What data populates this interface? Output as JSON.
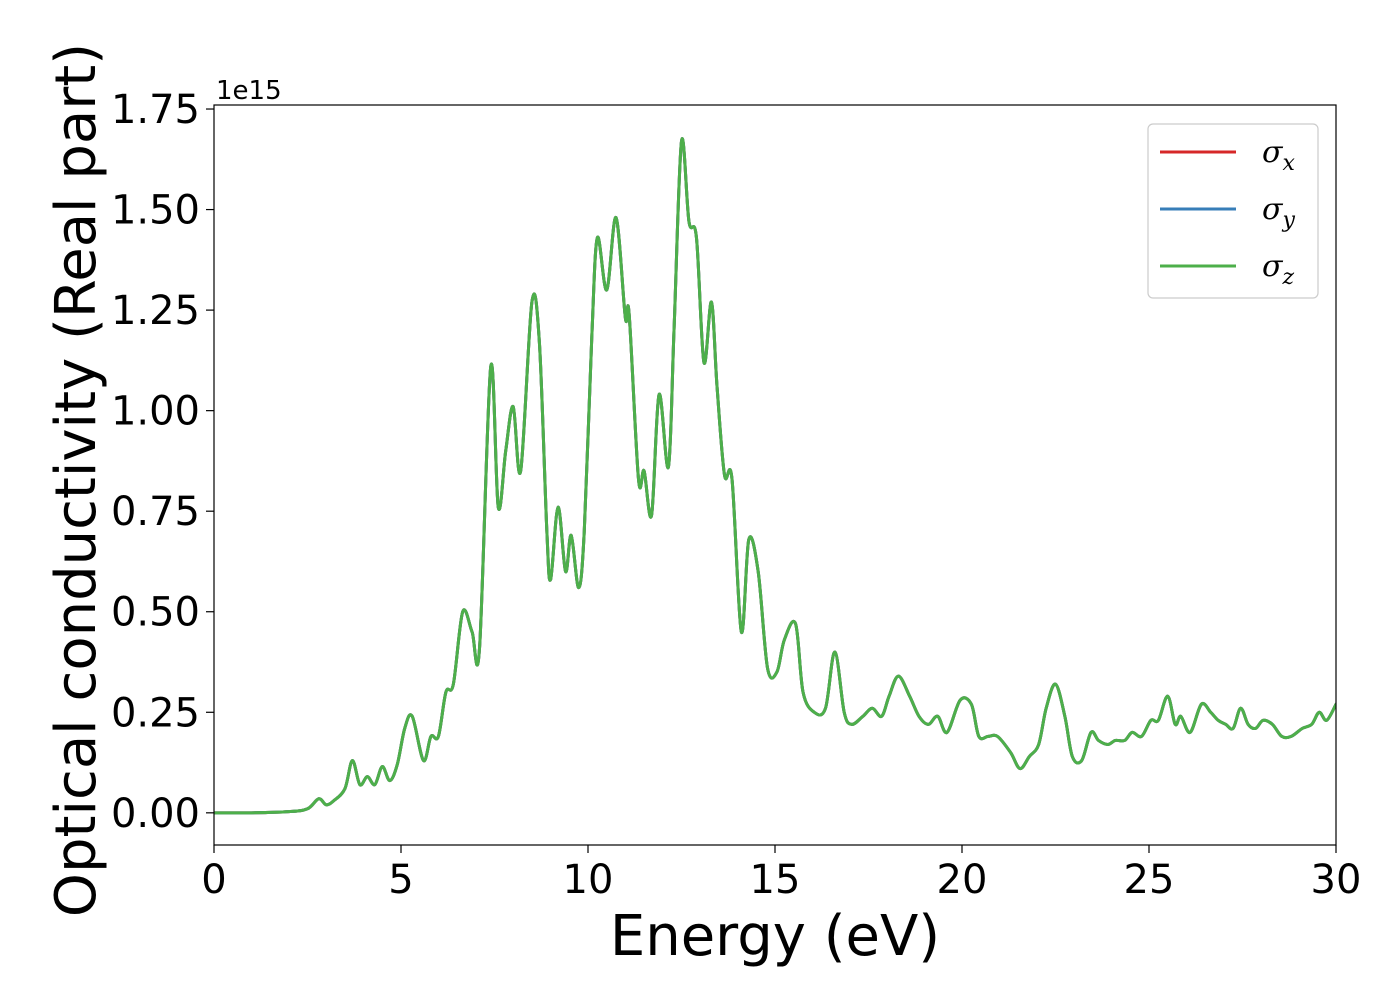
{
  "chart_data": {
    "type": "line",
    "xlabel": "Energy (eV)",
    "ylabel": "Optical conductivity (Real part)",
    "y_offset_label": "1e15",
    "xlim": [
      0,
      30
    ],
    "ylim": [
      -0.08,
      1.76
    ],
    "x_ticks": [
      0,
      5,
      10,
      15,
      20,
      25,
      30
    ],
    "x_tick_labels": [
      "0",
      "5",
      "10",
      "15",
      "20",
      "25",
      "30"
    ],
    "y_ticks": [
      0.0,
      0.25,
      0.5,
      0.75,
      1.0,
      1.25,
      1.5,
      1.75
    ],
    "y_tick_labels": [
      "0.00",
      "0.25",
      "0.50",
      "0.75",
      "1.00",
      "1.25",
      "1.50",
      "1.75"
    ],
    "grid": false,
    "legend_position": "top-right",
    "x": [
      0,
      1,
      2,
      2.5,
      2.8,
      3.0,
      3.2,
      3.5,
      3.7,
      3.9,
      4.1,
      4.3,
      4.5,
      4.7,
      4.9,
      5.1,
      5.3,
      5.6,
      5.8,
      6.0,
      6.2,
      6.4,
      6.65,
      6.9,
      7.1,
      7.4,
      7.6,
      7.8,
      8.0,
      8.2,
      8.5,
      8.7,
      8.9,
      9.0,
      9.2,
      9.4,
      9.55,
      9.75,
      9.9,
      10.1,
      10.25,
      10.5,
      10.75,
      11.0,
      11.1,
      11.35,
      11.5,
      11.7,
      11.9,
      12.15,
      12.3,
      12.5,
      12.7,
      12.9,
      13.1,
      13.3,
      13.45,
      13.65,
      13.85,
      14.1,
      14.3,
      14.55,
      14.8,
      15.05,
      15.25,
      15.55,
      15.75,
      16.05,
      16.35,
      16.6,
      16.85,
      17.05,
      17.35,
      17.6,
      17.85,
      18.05,
      18.3,
      18.6,
      18.85,
      19.1,
      19.35,
      19.6,
      19.95,
      20.25,
      20.45,
      20.7,
      20.95,
      21.3,
      21.55,
      21.8,
      22.05,
      22.25,
      22.5,
      22.75,
      22.95,
      23.2,
      23.45,
      23.65,
      23.9,
      24.1,
      24.35,
      24.55,
      24.8,
      25.05,
      25.25,
      25.5,
      25.7,
      25.85,
      26.1,
      26.4,
      26.65,
      26.85,
      27.05,
      27.25,
      27.45,
      27.65,
      27.85,
      28.05,
      28.3,
      28.55,
      28.8,
      29.1,
      29.35,
      29.55,
      29.75,
      30.0
    ],
    "series": [
      {
        "name": "σx",
        "color": "#d62728",
        "values": [
          0.0,
          0.0,
          0.003,
          0.01,
          0.035,
          0.02,
          0.03,
          0.06,
          0.13,
          0.07,
          0.09,
          0.07,
          0.115,
          0.08,
          0.12,
          0.21,
          0.24,
          0.13,
          0.19,
          0.19,
          0.3,
          0.32,
          0.5,
          0.45,
          0.41,
          1.11,
          0.76,
          0.9,
          1.01,
          0.85,
          1.27,
          1.17,
          0.7,
          0.58,
          0.76,
          0.6,
          0.69,
          0.56,
          0.7,
          1.18,
          1.43,
          1.3,
          1.48,
          1.23,
          1.24,
          0.83,
          0.85,
          0.74,
          1.04,
          0.86,
          1.2,
          1.67,
          1.47,
          1.43,
          1.12,
          1.27,
          1.06,
          0.84,
          0.83,
          0.45,
          0.68,
          0.6,
          0.36,
          0.35,
          0.43,
          0.47,
          0.3,
          0.25,
          0.26,
          0.4,
          0.25,
          0.22,
          0.24,
          0.26,
          0.24,
          0.29,
          0.34,
          0.29,
          0.24,
          0.22,
          0.24,
          0.2,
          0.28,
          0.27,
          0.19,
          0.19,
          0.19,
          0.15,
          0.11,
          0.14,
          0.17,
          0.26,
          0.32,
          0.24,
          0.14,
          0.13,
          0.2,
          0.18,
          0.17,
          0.18,
          0.18,
          0.2,
          0.19,
          0.23,
          0.23,
          0.29,
          0.22,
          0.24,
          0.2,
          0.27,
          0.25,
          0.23,
          0.22,
          0.21,
          0.26,
          0.22,
          0.21,
          0.23,
          0.22,
          0.19,
          0.19,
          0.21,
          0.22,
          0.25,
          0.23,
          0.27
        ]
      },
      {
        "name": "σy",
        "color": "#377eb8",
        "values": [
          0.0,
          0.0,
          0.003,
          0.01,
          0.035,
          0.02,
          0.03,
          0.06,
          0.13,
          0.07,
          0.09,
          0.07,
          0.115,
          0.08,
          0.12,
          0.21,
          0.24,
          0.13,
          0.19,
          0.19,
          0.3,
          0.32,
          0.5,
          0.45,
          0.41,
          1.11,
          0.76,
          0.9,
          1.01,
          0.85,
          1.27,
          1.17,
          0.7,
          0.58,
          0.76,
          0.6,
          0.69,
          0.56,
          0.7,
          1.18,
          1.43,
          1.3,
          1.48,
          1.23,
          1.24,
          0.83,
          0.85,
          0.74,
          1.04,
          0.86,
          1.2,
          1.67,
          1.47,
          1.43,
          1.12,
          1.27,
          1.06,
          0.84,
          0.83,
          0.45,
          0.68,
          0.6,
          0.36,
          0.35,
          0.43,
          0.47,
          0.3,
          0.25,
          0.26,
          0.4,
          0.25,
          0.22,
          0.24,
          0.26,
          0.24,
          0.29,
          0.34,
          0.29,
          0.24,
          0.22,
          0.24,
          0.2,
          0.28,
          0.27,
          0.19,
          0.19,
          0.19,
          0.15,
          0.11,
          0.14,
          0.17,
          0.26,
          0.32,
          0.24,
          0.14,
          0.13,
          0.2,
          0.18,
          0.17,
          0.18,
          0.18,
          0.2,
          0.19,
          0.23,
          0.23,
          0.29,
          0.22,
          0.24,
          0.2,
          0.27,
          0.25,
          0.23,
          0.22,
          0.21,
          0.26,
          0.22,
          0.21,
          0.23,
          0.22,
          0.19,
          0.19,
          0.21,
          0.22,
          0.25,
          0.23,
          0.27
        ]
      },
      {
        "name": "σz",
        "color": "#4daf4a",
        "values": [
          0.0,
          0.0,
          0.003,
          0.01,
          0.035,
          0.02,
          0.03,
          0.06,
          0.13,
          0.07,
          0.09,
          0.07,
          0.115,
          0.08,
          0.12,
          0.21,
          0.24,
          0.13,
          0.19,
          0.19,
          0.3,
          0.32,
          0.5,
          0.45,
          0.41,
          1.11,
          0.76,
          0.9,
          1.01,
          0.85,
          1.27,
          1.17,
          0.7,
          0.58,
          0.76,
          0.6,
          0.69,
          0.56,
          0.7,
          1.18,
          1.43,
          1.3,
          1.48,
          1.23,
          1.24,
          0.83,
          0.85,
          0.74,
          1.04,
          0.86,
          1.2,
          1.67,
          1.47,
          1.43,
          1.12,
          1.27,
          1.06,
          0.84,
          0.83,
          0.45,
          0.68,
          0.6,
          0.36,
          0.35,
          0.43,
          0.47,
          0.3,
          0.25,
          0.26,
          0.4,
          0.25,
          0.22,
          0.24,
          0.26,
          0.24,
          0.29,
          0.34,
          0.29,
          0.24,
          0.22,
          0.24,
          0.2,
          0.28,
          0.27,
          0.19,
          0.19,
          0.19,
          0.15,
          0.11,
          0.14,
          0.17,
          0.26,
          0.32,
          0.24,
          0.14,
          0.13,
          0.2,
          0.18,
          0.17,
          0.18,
          0.18,
          0.2,
          0.19,
          0.23,
          0.23,
          0.29,
          0.22,
          0.24,
          0.2,
          0.27,
          0.25,
          0.23,
          0.22,
          0.21,
          0.26,
          0.22,
          0.21,
          0.23,
          0.22,
          0.19,
          0.19,
          0.21,
          0.22,
          0.25,
          0.23,
          0.27
        ]
      }
    ],
    "legend": [
      {
        "symbol": "σ",
        "subscript": "x",
        "color": "#d62728"
      },
      {
        "symbol": "σ",
        "subscript": "y",
        "color": "#377eb8"
      },
      {
        "symbol": "σ",
        "subscript": "z",
        "color": "#4daf4a"
      }
    ]
  }
}
